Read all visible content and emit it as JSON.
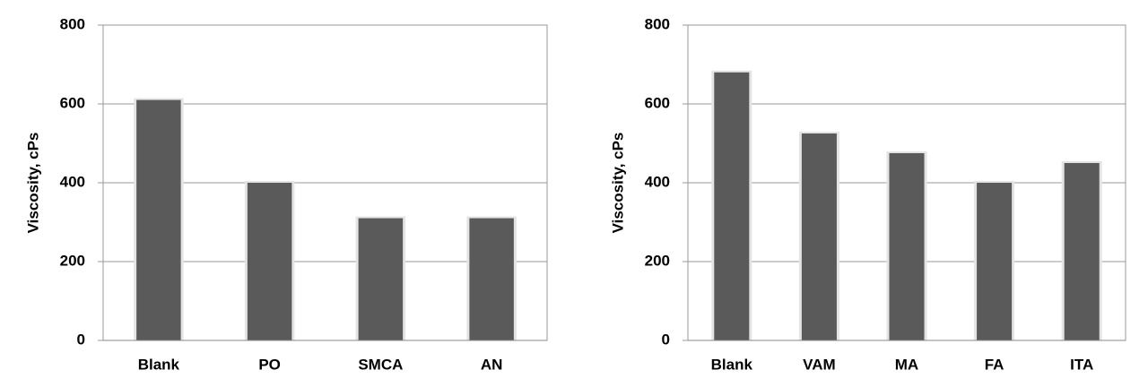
{
  "chart_data": [
    {
      "type": "bar",
      "y_label": "Viscosity, cPs",
      "categories": [
        "Blank",
        "PO",
        "SMCA",
        "AN"
      ],
      "values": [
        610,
        400,
        310,
        310
      ],
      "color": "#5a5a5a",
      "ylim": [
        0,
        800
      ],
      "yticks": [
        0,
        200,
        400,
        600,
        800
      ],
      "grid": true
    },
    {
      "type": "bar",
      "y_label": "Viscosity, cPs",
      "categories": [
        "Blank",
        "VAM",
        "MA",
        "FA",
        "ITA"
      ],
      "values": [
        680,
        525,
        475,
        400,
        450
      ],
      "color": "#5a5a5a",
      "ylim": [
        0,
        800
      ],
      "yticks": [
        0,
        200,
        400,
        600,
        800
      ],
      "grid": true
    }
  ]
}
